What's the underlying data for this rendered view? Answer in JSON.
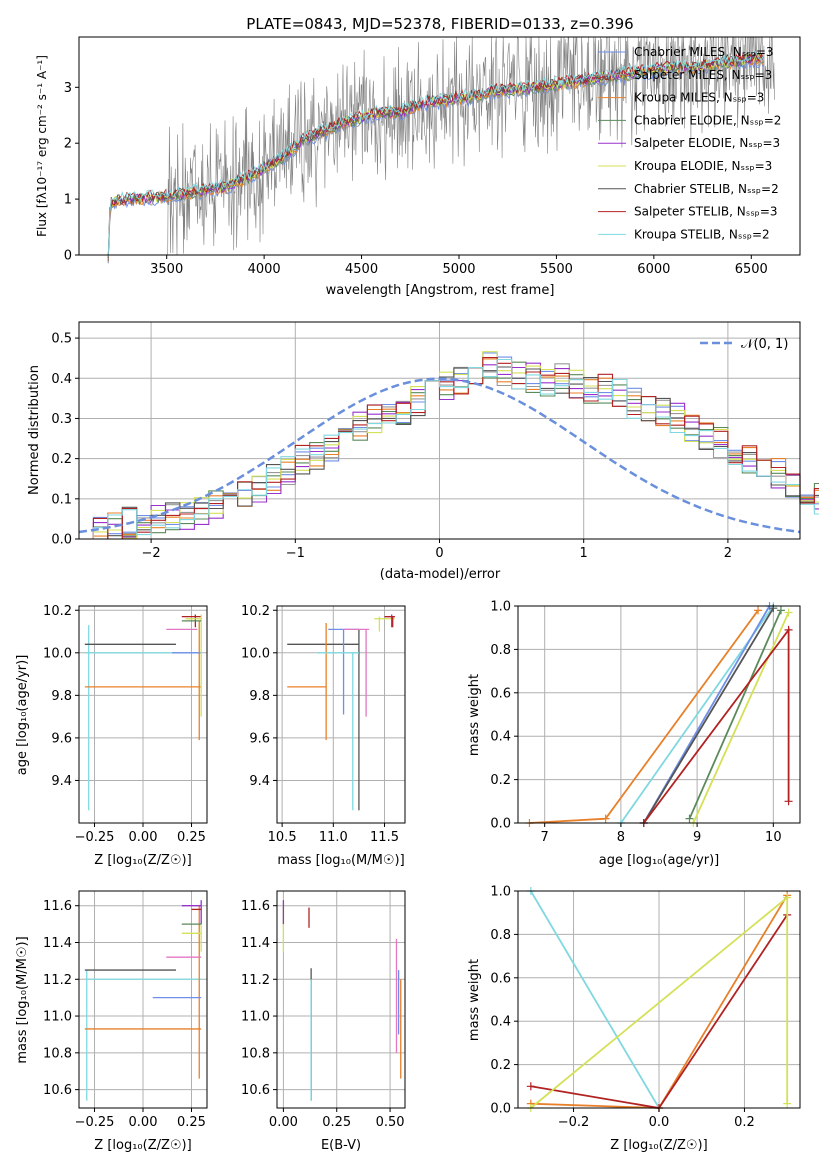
{
  "figure_title": "PLATE=0843, MJD=52378, FIBERID=0133, z=0.396",
  "colors": {
    "chabrier_miles": "#6f8fe8",
    "salpeter_miles": "#999999",
    "kroupa_miles": "#e8802a",
    "chabrier_elodie": "#5a8a5a",
    "salpeter_elodie": "#9932cc",
    "kroupa_elodie": "#d4e157",
    "chabrier_stelib": "#555555",
    "salpeter_stelib": "#b22222",
    "kroupa_stelib": "#80d8e0",
    "data": "#808080",
    "normal": "#6a8fdc",
    "grid": "#b0b0b0"
  },
  "chart_data": [
    {
      "id": "spectrum",
      "type": "line",
      "xlabel": "wavelength [Angstrom, rest frame]",
      "ylabel": "Flux [fλ10⁻¹⁷ erg cm⁻² s⁻¹ A⁻¹]",
      "xlim": [
        3050,
        6750
      ],
      "ylim": [
        0,
        3.9
      ],
      "xticks": [
        "3500",
        "4000",
        "4500",
        "5000",
        "5500",
        "6000",
        "6500"
      ],
      "yticks": [
        "0",
        "1",
        "2",
        "3"
      ],
      "grid": false,
      "legend_position": "top-right",
      "legend": [
        "Chabrier MILES, Nₛₛₚ=3",
        "Salpeter MILES, Nₛₛₚ=3",
        "Kroupa MILES, Nₛₛₚ=3",
        "Chabrier ELODIE, Nₛₛₚ=2",
        "Salpeter ELODIE, Nₛₛₚ=3",
        "Kroupa ELODIE, Nₛₛₚ=3",
        "Chabrier STELIB, Nₛₛₚ=2",
        "Salpeter STELIB, Nₛₛₚ=3",
        "Kroupa STELIB, Nₛₛₚ=2"
      ],
      "model_curve": {
        "x": [
          3200,
          3210,
          3300,
          3400,
          3500,
          3600,
          3700,
          3800,
          3900,
          4000,
          4100,
          4200,
          4300,
          4400,
          4500,
          4600,
          4700,
          4800,
          4900,
          5000,
          5100,
          5200,
          5300,
          5400,
          5500,
          5600,
          5700,
          5800,
          5900,
          6000,
          6100,
          6200,
          6300,
          6400,
          6500
        ],
        "y": [
          0,
          0.92,
          1.0,
          1.02,
          1.05,
          1.1,
          1.15,
          1.22,
          1.35,
          1.55,
          1.75,
          2.05,
          2.2,
          2.35,
          2.45,
          2.55,
          2.55,
          2.7,
          2.75,
          2.8,
          2.85,
          2.95,
          2.95,
          3.0,
          3.05,
          3.1,
          3.15,
          3.2,
          3.25,
          3.3,
          3.35,
          3.35,
          3.4,
          3.45,
          3.5
        ]
      },
      "data_noise": "high-noise observed spectrum 3500-6600 A"
    },
    {
      "id": "residuals",
      "type": "histogram",
      "xlabel": "(data-model)/error",
      "ylabel": "Normed distribution",
      "xlim": [
        -2.5,
        2.5
      ],
      "ylim": [
        0,
        0.54
      ],
      "xticks": [
        "−2",
        "−1",
        "0",
        "1",
        "2"
      ],
      "yticks": [
        "0.0",
        "0.1",
        "0.2",
        "0.3",
        "0.4",
        "0.5"
      ],
      "grid": true,
      "legend_position": "top-right",
      "legend": [
        "𝒩(0, 1)"
      ],
      "bin_edges_start": -2.5,
      "bin_width": 0.1,
      "base_heights": [
        0.02,
        0.02,
        0.03,
        0.04,
        0.04,
        0.05,
        0.05,
        0.06,
        0.07,
        0.08,
        0.1,
        0.11,
        0.13,
        0.15,
        0.17,
        0.2,
        0.21,
        0.23,
        0.26,
        0.28,
        0.3,
        0.31,
        0.32,
        0.34,
        0.36,
        0.38,
        0.4,
        0.42,
        0.43,
        0.42,
        0.41,
        0.4,
        0.39,
        0.4,
        0.38,
        0.37,
        0.37,
        0.36,
        0.34,
        0.33,
        0.31,
        0.3,
        0.28,
        0.26,
        0.24,
        0.22,
        0.2,
        0.18,
        0.16,
        0.14,
        0.12,
        0.1,
        0.09,
        0.08,
        0.07,
        0.06,
        0.05,
        0.04,
        0.04,
        0.03
      ]
    },
    {
      "id": "age-vs-metallicity",
      "type": "errorbar",
      "xlabel": "Z [log₁₀(Z/Z☉)]",
      "ylabel": "age  [log₁₀(age/yr)]",
      "xlim": [
        -0.33,
        0.33
      ],
      "ylim": [
        9.2,
        10.22
      ],
      "xticks": [
        "−0.25",
        "0.00",
        "0.25"
      ],
      "yticks": [
        "9.4",
        "9.6",
        "9.8",
        "10.0",
        "10.2"
      ],
      "grid": true
    },
    {
      "id": "age-vs-mass",
      "type": "errorbar",
      "xlabel": "mass [log₁₀(M/M☉)]",
      "xlim": [
        10.45,
        11.7
      ],
      "ylim": [
        9.2,
        10.22
      ],
      "xticks": [
        "10.5",
        "11.0",
        "11.5"
      ],
      "yticks": [
        "9.4",
        "9.6",
        "9.8",
        "10.0",
        "10.2"
      ],
      "grid": true
    },
    {
      "id": "cumulative-mass-weight-age",
      "type": "line",
      "xlabel": "age  [log₁₀(age/yr)]",
      "ylabel": "mass weight",
      "xlim": [
        6.65,
        10.35
      ],
      "ylim": [
        0,
        1
      ],
      "xticks": [
        "7",
        "8",
        "9",
        "10"
      ],
      "yticks": [
        "0.0",
        "0.2",
        "0.4",
        "0.6",
        "0.8",
        "1.0"
      ],
      "grid": true,
      "series": [
        {
          "color": "#e8802a",
          "x": [
            6.8,
            7.8,
            9.8
          ],
          "y": [
            0.0,
            0.02,
            0.98
          ]
        },
        {
          "color": "#80d8e0",
          "x": [
            8.0,
            10.0
          ],
          "y": [
            0.0,
            1.0
          ]
        },
        {
          "color": "#6f8fe8",
          "x": [
            8.3,
            9.95
          ],
          "y": [
            0.0,
            1.0
          ]
        },
        {
          "color": "#555555",
          "x": [
            8.3,
            10.0
          ],
          "y": [
            0.0,
            0.99
          ]
        },
        {
          "color": "#5a8a5a",
          "x": [
            8.9,
            10.1
          ],
          "y": [
            0.02,
            0.98
          ]
        },
        {
          "color": "#d4e157",
          "x": [
            8.95,
            10.2
          ],
          "y": [
            0.0,
            0.97
          ]
        },
        {
          "color": "#b22222",
          "x": [
            8.3,
            10.2,
            10.2
          ],
          "y": [
            0.0,
            0.89,
            0.1
          ]
        }
      ]
    },
    {
      "id": "mass-vs-metallicity",
      "type": "errorbar",
      "xlabel": "Z [log₁₀(Z/Z☉)]",
      "ylabel": "mass [log₁₀(M/M☉)]",
      "xlim": [
        -0.33,
        0.33
      ],
      "ylim": [
        10.5,
        11.68
      ],
      "xticks": [
        "−0.25",
        "0.00",
        "0.25"
      ],
      "yticks": [
        "10.6",
        "10.8",
        "11.0",
        "11.2",
        "11.4",
        "11.6"
      ],
      "grid": true
    },
    {
      "id": "mass-vs-ebv",
      "type": "errorbar",
      "xlabel": "E(B-V)",
      "xlim": [
        -0.03,
        0.57
      ],
      "ylim": [
        10.5,
        11.68
      ],
      "xticks": [
        "0.00",
        "0.25",
        "0.50"
      ],
      "yticks": [
        "10.6",
        "10.8",
        "11.0",
        "11.2",
        "11.4",
        "11.6"
      ],
      "grid": true
    },
    {
      "id": "cumulative-mass-weight-metallicity",
      "type": "line",
      "xlabel": "Z [log₁₀(Z/Z☉)]",
      "ylabel": "mass weight",
      "xlim": [
        -0.33,
        0.33
      ],
      "ylim": [
        0,
        1
      ],
      "xticks": [
        "−0.2",
        "0.0",
        "0.2"
      ],
      "yticks": [
        "0.0",
        "0.2",
        "0.4",
        "0.6",
        "0.8",
        "1.0"
      ],
      "grid": true,
      "series": [
        {
          "color": "#80d8e0",
          "x": [
            -0.3,
            0.0
          ],
          "y": [
            1.0,
            0.0
          ]
        },
        {
          "color": "#e8802a",
          "x": [
            -0.3,
            0.0,
            0.3
          ],
          "y": [
            0.02,
            0.0,
            0.98
          ]
        },
        {
          "color": "#b22222",
          "x": [
            -0.3,
            0.0,
            0.3
          ],
          "y": [
            0.1,
            0.0,
            0.89
          ]
        },
        {
          "color": "#d4e157",
          "x": [
            -0.3,
            0.3,
            0.3
          ],
          "y": [
            0.0,
            0.97,
            0.02
          ]
        }
      ]
    }
  ]
}
